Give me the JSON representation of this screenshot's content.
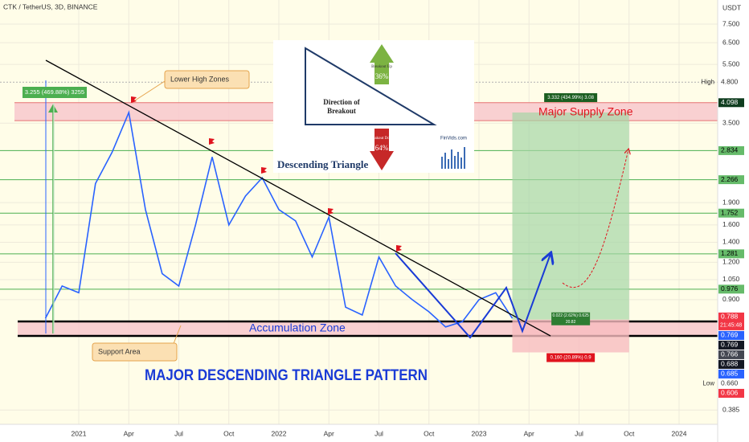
{
  "header": {
    "symbol": "CTK / TetherUS, 3D, BINANCE",
    "currency": "USDT"
  },
  "chart_data": {
    "type": "line",
    "log_scale": true,
    "grid": true,
    "x": [
      "2020-11",
      "2020-12",
      "2021-01",
      "2021-02",
      "2021-03",
      "2021-04",
      "2021-05",
      "2021-06",
      "2021-07",
      "2021-08",
      "2021-09",
      "2021-10",
      "2021-11",
      "2021-12",
      "2022-01",
      "2022-02",
      "2022-03",
      "2022-04",
      "2022-05",
      "2022-06",
      "2022-07",
      "2022-08",
      "2022-09",
      "2022-10",
      "2022-11",
      "2022-12",
      "2023-01",
      "2023-02",
      "2023-03"
    ],
    "values": [
      0.78,
      1.0,
      0.95,
      2.2,
      2.8,
      3.8,
      1.8,
      1.1,
      1.0,
      1.6,
      2.7,
      1.6,
      2.0,
      2.3,
      1.8,
      1.65,
      1.25,
      1.7,
      0.85,
      0.8,
      1.25,
      1.0,
      0.9,
      0.82,
      0.73,
      0.76,
      0.9,
      0.95,
      0.78
    ],
    "color": "#2962ff",
    "ylim": [
      0.345,
      9.03
    ],
    "yticks": [
      {
        "value": 7.5,
        "label": "7.500"
      },
      {
        "value": 6.5,
        "label": "6.500"
      },
      {
        "value": 5.5,
        "label": "5.500"
      },
      {
        "value": 3.5,
        "label": "3.500"
      },
      {
        "value": 1.9,
        "label": "1.900"
      },
      {
        "value": 1.6,
        "label": "1.600"
      },
      {
        "value": 1.4,
        "label": "1.400"
      },
      {
        "value": 1.2,
        "label": "1.200"
      },
      {
        "value": 1.05,
        "label": "1.050"
      },
      {
        "value": 0.9,
        "label": "0.900"
      },
      {
        "value": 0.385,
        "label": "0.385"
      }
    ],
    "xticks": [
      {
        "value": "2021-01",
        "label": "2021"
      },
      {
        "value": "2021-04",
        "label": "Apr"
      },
      {
        "value": "2021-07",
        "label": "Jul"
      },
      {
        "value": "2021-10",
        "label": "Oct"
      },
      {
        "value": "2022-01",
        "label": "2022"
      },
      {
        "value": "2022-04",
        "label": "Apr"
      },
      {
        "value": "2022-07",
        "label": "Jul"
      },
      {
        "value": "2022-10",
        "label": "Oct"
      },
      {
        "value": "2023-01",
        "label": "2023"
      },
      {
        "value": "2023-04",
        "label": "Apr"
      },
      {
        "value": "2023-07",
        "label": "Jul"
      },
      {
        "value": "2023-10",
        "label": "Oct"
      },
      {
        "value": "2024-01",
        "label": "2024"
      }
    ],
    "price_labels": [
      {
        "tag": "High",
        "label": "4.800",
        "value": 4.8,
        "color": "#ffffff",
        "text_color": "#333333",
        "line_color": "#b0b0b0"
      },
      {
        "label": "4.098",
        "value": 4.098,
        "color": "#0f3d1f",
        "text_color": "#ffffff"
      },
      {
        "label": "2.834",
        "value": 2.834,
        "color": "#66bb6a",
        "text_color": "#000000",
        "line_color": "#4caf50"
      },
      {
        "label": "2.266",
        "value": 2.266,
        "color": "#66bb6a",
        "text_color": "#000000",
        "line_color": "#4caf50"
      },
      {
        "label": "1.752",
        "value": 1.752,
        "color": "#66bb6a",
        "text_color": "#000000",
        "line_color": "#4caf50"
      },
      {
        "label": "1.281",
        "value": 1.281,
        "color": "#66bb6a",
        "text_color": "#000000",
        "line_color": "#4caf50"
      },
      {
        "label": "0.976",
        "value": 0.976,
        "color": "#66bb6a",
        "text_color": "#000000",
        "line_color": "#4caf50"
      },
      {
        "label": "0.788",
        "value": 0.788,
        "color": "#f23645",
        "text_color": "#ffffff",
        "countdown": "21:45:48"
      },
      {
        "label": "0.769",
        "value": 0.769,
        "color": "#2962ff",
        "text_color": "#ffffff"
      },
      {
        "label": "0.769",
        "value": 0.769,
        "color": "#131722",
        "text_color": "#ffffff"
      },
      {
        "label": "0.766",
        "value": 0.766,
        "color": "#434651",
        "text_color": "#ffffff"
      },
      {
        "label": "0.688",
        "value": 0.688,
        "color": "#131722",
        "text_color": "#ffffff"
      },
      {
        "label": "0.685",
        "value": 0.685,
        "color": "#2962ff",
        "text_color": "#ffffff"
      },
      {
        "tag": "Low",
        "label": "0.660",
        "value": 0.66,
        "color": "#ffffff",
        "text_color": "#333333"
      },
      {
        "label": "0.606",
        "value": 0.606,
        "color": "#f23645",
        "text_color": "#ffffff"
      }
    ],
    "zones": [
      {
        "label": "Major Supply Zone",
        "from": 3.57,
        "to": 4.098,
        "fill": "#f8c8cc",
        "stroke": "#e57373",
        "text_color": "#e0141e"
      },
      {
        "label": "Accumulation Zone",
        "from": 0.681,
        "to": 0.761,
        "fill": "#f8c8cc",
        "stroke": "#000000",
        "text_color": "#1a3bd6"
      }
    ],
    "position": {
      "start": "2023-03",
      "end": "2023-10",
      "entry": 0.772,
      "target": 3.8,
      "stop": 0.6,
      "target_label": "3.332 (434.99%) 3.08",
      "stop_label": "0.160 (20.89%) 0.9",
      "entry_label": "0.022 (2.62%) 0.625",
      "entry_sub": "20.82"
    },
    "annotations": {
      "lower_high": "Lower High Zones",
      "support": "Support Area",
      "measure": "3.255 (469.88%) 3255",
      "pattern": "MAJOR DESCENDING TRIANGLE PATTERN"
    },
    "inset": {
      "title": "Descending Triangle",
      "direction": "Direction of",
      "breakout": "Breakout",
      "up": "Breakout Up",
      "up_pct": "36%",
      "down": "Breakout Down",
      "down_pct": "64%",
      "source": "FinVids.com"
    }
  }
}
